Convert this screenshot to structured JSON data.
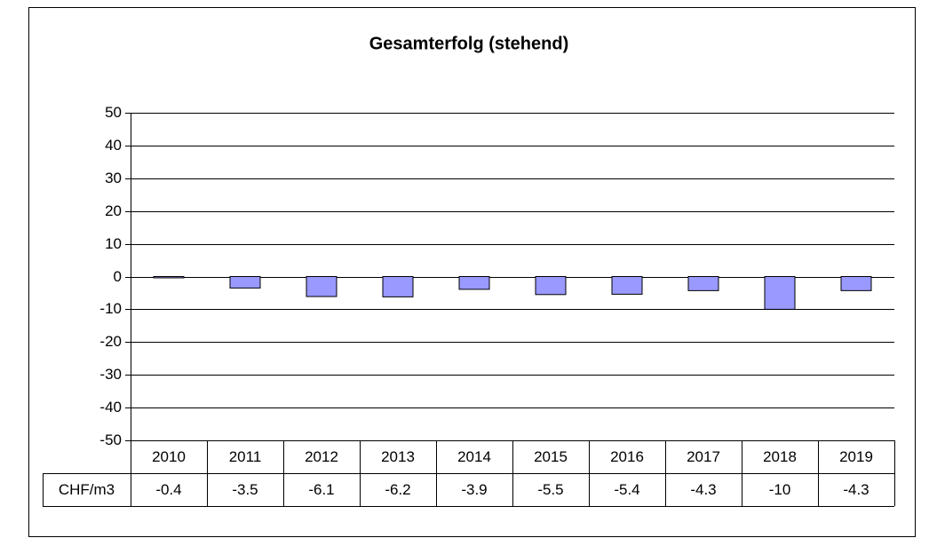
{
  "chart_data": {
    "type": "bar",
    "title": "Gesamterfolg (stehend)",
    "categories": [
      "2010",
      "2011",
      "2012",
      "2013",
      "2014",
      "2015",
      "2016",
      "2017",
      "2018",
      "2019"
    ],
    "series": [
      {
        "name": "CHF/m3",
        "color": "#9999ff",
        "values": [
          -0.4,
          -3.5,
          -6.1,
          -6.2,
          -3.9,
          -5.5,
          -5.4,
          -4.3,
          -10,
          -4.3
        ]
      }
    ],
    "ylim": [
      -50,
      50
    ],
    "yticks": [
      -50,
      -40,
      -30,
      -20,
      -10,
      0,
      10,
      20,
      30,
      40,
      50
    ],
    "grid": true
  }
}
